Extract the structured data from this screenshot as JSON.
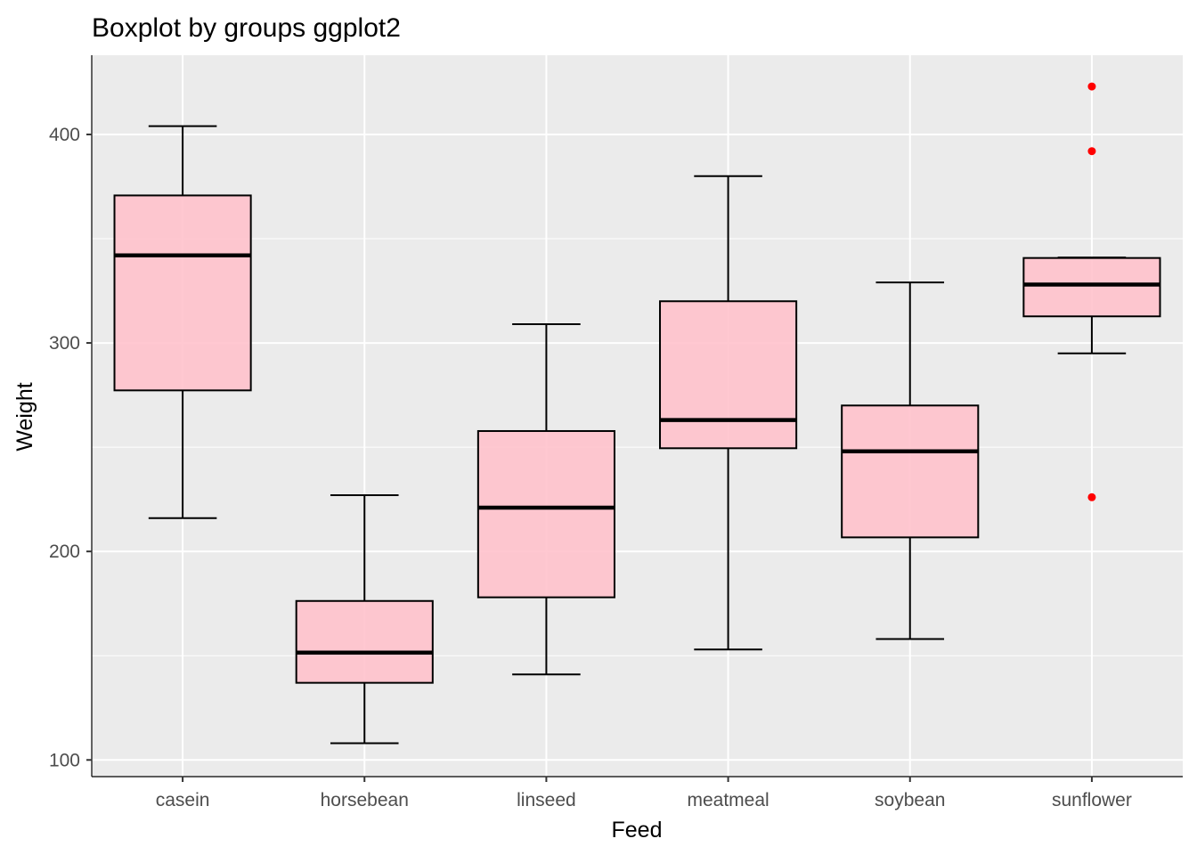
{
  "chart_data": {
    "type": "boxplot",
    "title": "Boxplot by groups ggplot2",
    "xlabel": "Feed",
    "ylabel": "Weight",
    "ylim": [
      92,
      438
    ],
    "yticks": [
      100,
      200,
      300,
      400
    ],
    "grid": true,
    "panel_background": "#ebebeb",
    "box_fill": "#ffc0cb",
    "outlier_color": "#ff0000",
    "categories": [
      "casein",
      "horsebean",
      "linseed",
      "meatmeal",
      "soybean",
      "sunflower"
    ],
    "boxes": [
      {
        "category": "casein",
        "whisker_low": 216,
        "q1": 277.25,
        "median": 342,
        "q3": 370.75,
        "whisker_high": 404,
        "outliers": []
      },
      {
        "category": "horsebean",
        "whisker_low": 108,
        "q1": 137,
        "median": 151.5,
        "q3": 176.25,
        "whisker_high": 227,
        "outliers": []
      },
      {
        "category": "linseed",
        "whisker_low": 141,
        "q1": 178,
        "median": 221,
        "q3": 257.75,
        "whisker_high": 309,
        "outliers": []
      },
      {
        "category": "meatmeal",
        "whisker_low": 153,
        "q1": 249.5,
        "median": 263,
        "q3": 320,
        "whisker_high": 380,
        "outliers": []
      },
      {
        "category": "soybean",
        "whisker_low": 158,
        "q1": 206.75,
        "median": 248,
        "q3": 270,
        "whisker_high": 329,
        "outliers": []
      },
      {
        "category": "sunflower",
        "whisker_low": 295,
        "q1": 312.75,
        "median": 328,
        "q3": 340.75,
        "whisker_high": 341,
        "outliers": [
          226,
          392,
          423
        ]
      }
    ]
  }
}
